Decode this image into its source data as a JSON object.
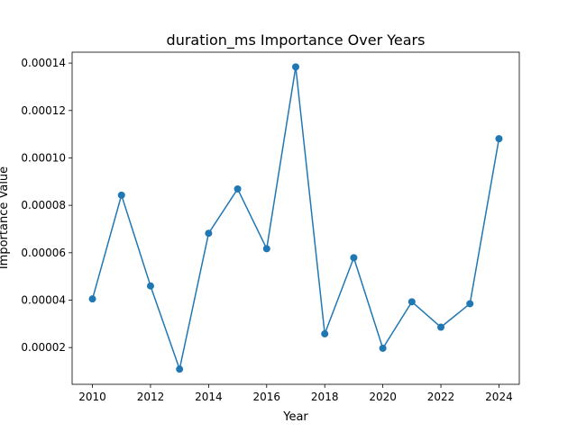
{
  "chart_data": {
    "type": "line",
    "title": "duration_ms Importance Over Years",
    "xlabel": "Year",
    "ylabel": "Importance Value",
    "xlim": [
      2009.3,
      2024.7
    ],
    "ylim": [
      4.5e-06,
      0.0001446
    ],
    "x_ticks": [
      2010,
      2012,
      2014,
      2016,
      2018,
      2020,
      2022,
      2024
    ],
    "y_ticks": [
      2e-05,
      4e-05,
      6e-05,
      8e-05,
      0.0001,
      0.00012,
      0.00014
    ],
    "y_tick_labels": [
      "0.00002",
      "0.00004",
      "0.00006",
      "0.00008",
      "0.00010",
      "0.00012",
      "0.00014"
    ],
    "grid": false,
    "series": [
      {
        "color": "#1f77b4",
        "marker": "circle",
        "x": [
          2010,
          2011,
          2012,
          2013,
          2014,
          2015,
          2016,
          2017,
          2018,
          2019,
          2020,
          2021,
          2022,
          2023,
          2024
        ],
        "y": [
          4.05e-05,
          8.43e-05,
          4.6e-05,
          1.09e-05,
          6.82e-05,
          8.69e-05,
          6.17e-05,
          0.0001384,
          2.58e-05,
          5.79e-05,
          1.97e-05,
          3.93e-05,
          2.86e-05,
          3.85e-05,
          0.0001081
        ]
      }
    ]
  }
}
